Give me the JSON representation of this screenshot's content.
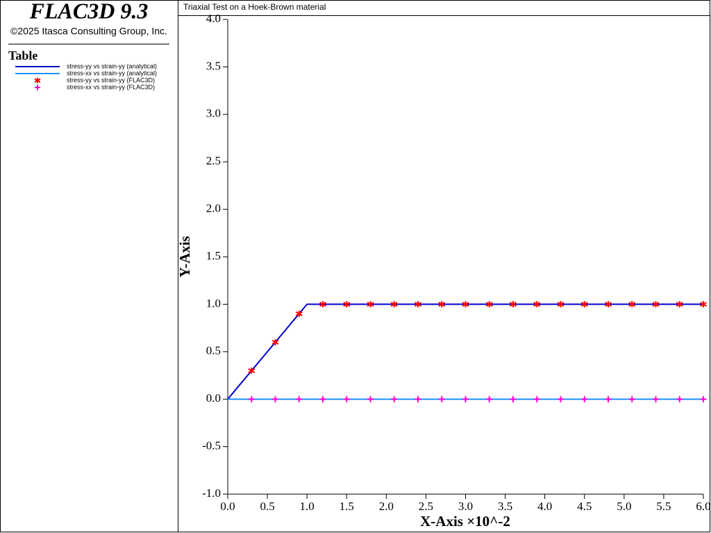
{
  "header": {
    "product": "FLAC3D 9.3",
    "copyright": "©2025 Itasca Consulting Group, Inc.",
    "legend_title": "Table"
  },
  "chart_data": {
    "type": "line",
    "title": "Triaxial Test on a Hoek-Brown material",
    "x_label": "X-Axis ×10^-2",
    "y_label": "Y-Axis",
    "xlim": [
      0,
      6
    ],
    "ylim": [
      -1,
      4
    ],
    "xticks": [
      {
        "value": 0,
        "label": "0.0"
      },
      {
        "value": 0.5,
        "label": "0.5"
      },
      {
        "value": 1,
        "label": "1.0"
      },
      {
        "value": 1.5,
        "label": "1.5"
      },
      {
        "value": 2,
        "label": "2.0"
      },
      {
        "value": 2.5,
        "label": "2.5"
      },
      {
        "value": 3,
        "label": "3.0"
      },
      {
        "value": 3.5,
        "label": "3.5"
      },
      {
        "value": 4,
        "label": "4.0"
      },
      {
        "value": 4.5,
        "label": "4.5"
      },
      {
        "value": 5,
        "label": "5.0"
      },
      {
        "value": 5.5,
        "label": "5.5"
      },
      {
        "value": 6,
        "label": "6.0"
      }
    ],
    "yticks": [
      {
        "value": -1,
        "label": "-1.0"
      },
      {
        "value": -0.5,
        "label": "-0.5"
      },
      {
        "value": 0,
        "label": "0.0"
      },
      {
        "value": 0.5,
        "label": "0.5"
      },
      {
        "value": 1,
        "label": "1.0"
      },
      {
        "value": 1.5,
        "label": "1.5"
      },
      {
        "value": 2,
        "label": "2.0"
      },
      {
        "value": 2.5,
        "label": "2.5"
      },
      {
        "value": 3,
        "label": "3.0"
      },
      {
        "value": 3.5,
        "label": "3.5"
      },
      {
        "value": 4,
        "label": "4.0"
      }
    ],
    "series": [
      {
        "name": "stress-yy vs strain-yy (analytical)",
        "color": "#0000cd",
        "style": "line",
        "x": [
          0,
          1,
          6
        ],
        "values": [
          0,
          1,
          1
        ]
      },
      {
        "name": "stress-xx vs strain-yy (analytical)",
        "color": "#1e90ff",
        "style": "line",
        "x": [
          0,
          6
        ],
        "values": [
          0,
          0
        ]
      },
      {
        "name": "stress-yy vs strain-yy (FLAC3D)",
        "color": "#ff0000",
        "style": "star",
        "x": [
          0.3,
          0.6,
          0.9,
          1.2,
          1.5,
          1.8,
          2.1,
          2.4,
          2.7,
          3.0,
          3.3,
          3.6,
          3.9,
          4.2,
          4.5,
          4.8,
          5.1,
          5.4,
          5.7,
          6.0
        ],
        "values": [
          0.3,
          0.6,
          0.9,
          1,
          1,
          1,
          1,
          1,
          1,
          1,
          1,
          1,
          1,
          1,
          1,
          1,
          1,
          1,
          1,
          1
        ]
      },
      {
        "name": "stress-xx vs strain-yy (FLAC3D)",
        "color": "#ff00cc",
        "style": "plus",
        "x": [
          0.3,
          0.6,
          0.9,
          1.2,
          1.5,
          1.8,
          2.1,
          2.4,
          2.7,
          3.0,
          3.3,
          3.6,
          3.9,
          4.2,
          4.5,
          4.8,
          5.1,
          5.4,
          5.7,
          6.0
        ],
        "values": [
          0,
          0,
          0,
          0,
          0,
          0,
          0,
          0,
          0,
          0,
          0,
          0,
          0,
          0,
          0,
          0,
          0,
          0,
          0,
          0
        ]
      }
    ]
  }
}
